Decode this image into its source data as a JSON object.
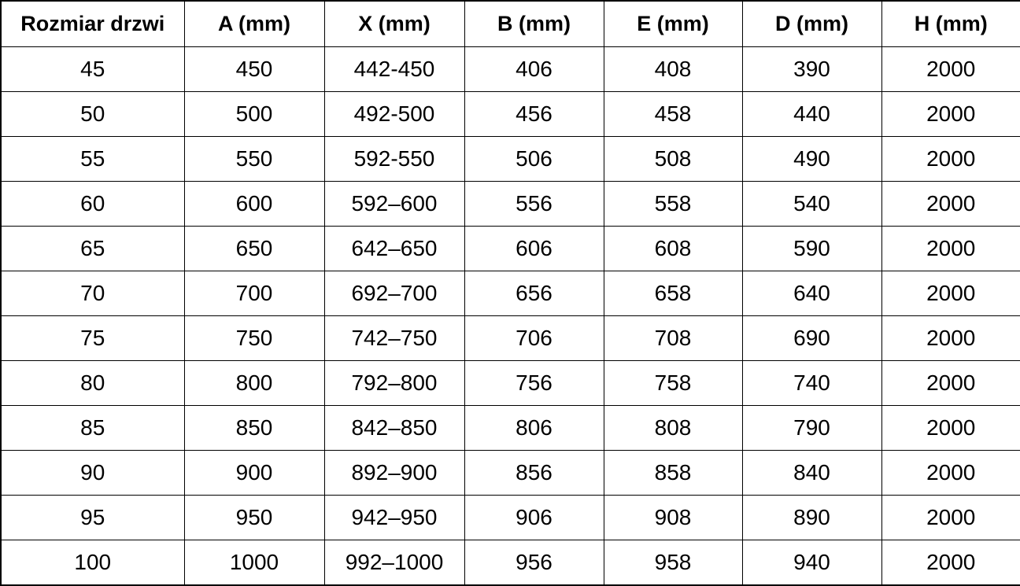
{
  "chart_data": {
    "type": "table",
    "columns": [
      "Rozmiar drzwi",
      "A (mm)",
      "X (mm)",
      "B (mm)",
      "E (mm)",
      "D (mm)",
      "H (mm)"
    ],
    "rows": [
      [
        "45",
        "450",
        "442-450",
        "406",
        "408",
        "390",
        "2000"
      ],
      [
        "50",
        "500",
        "492-500",
        "456",
        "458",
        "440",
        "2000"
      ],
      [
        "55",
        "550",
        "592-550",
        "506",
        "508",
        "490",
        "2000"
      ],
      [
        "60",
        "600",
        "592–600",
        "556",
        "558",
        "540",
        "2000"
      ],
      [
        "65",
        "650",
        "642–650",
        "606",
        "608",
        "590",
        "2000"
      ],
      [
        "70",
        "700",
        "692–700",
        "656",
        "658",
        "640",
        "2000"
      ],
      [
        "75",
        "750",
        "742–750",
        "706",
        "708",
        "690",
        "2000"
      ],
      [
        "80",
        "800",
        "792–800",
        "756",
        "758",
        "740",
        "2000"
      ],
      [
        "85",
        "850",
        "842–850",
        "806",
        "808",
        "790",
        "2000"
      ],
      [
        "90",
        "900",
        "892–900",
        "856",
        "858",
        "840",
        "2000"
      ],
      [
        "95",
        "950",
        "942–950",
        "906",
        "908",
        "890",
        "2000"
      ],
      [
        "100",
        "1000",
        "992–1000",
        "956",
        "958",
        "940",
        "2000"
      ]
    ]
  },
  "colors": {
    "border": "#000000",
    "text": "#000000",
    "background": "#ffffff"
  }
}
